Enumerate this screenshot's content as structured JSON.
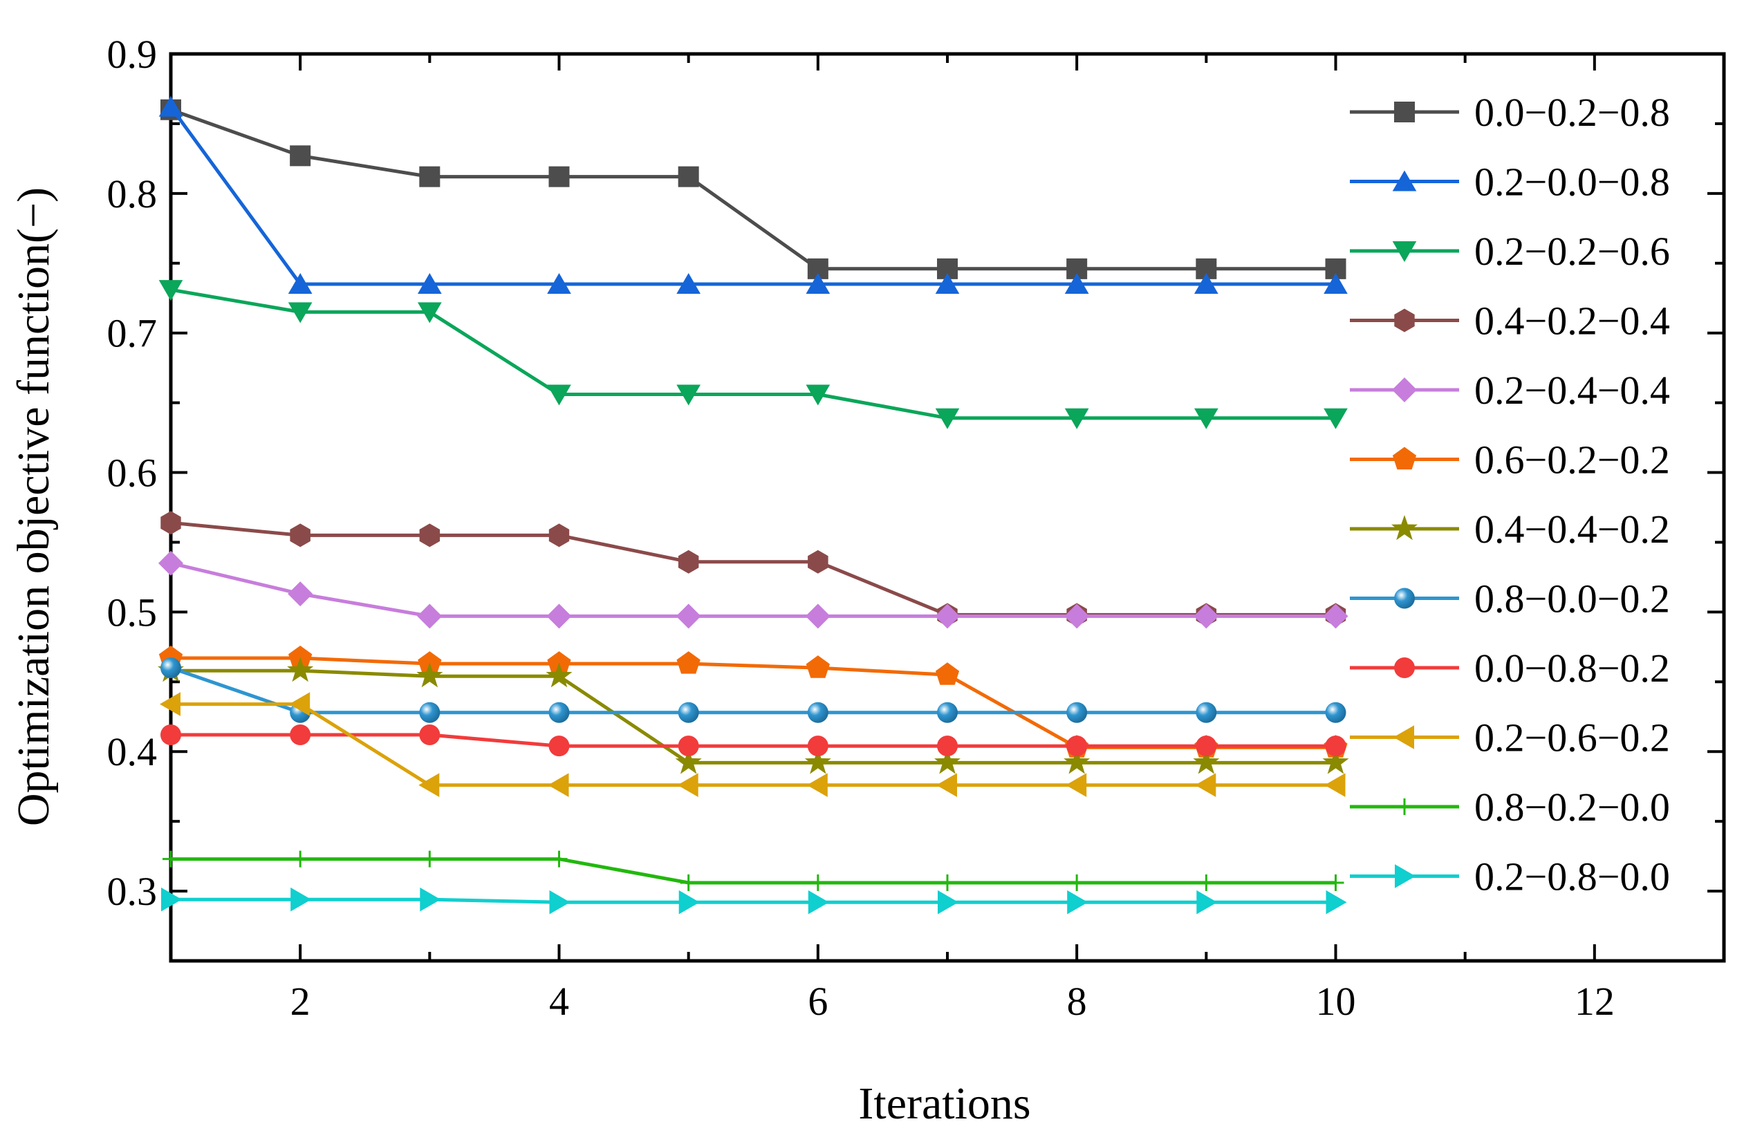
{
  "chart_data": {
    "type": "line",
    "title": "",
    "xlabel": "Iterations",
    "ylabel": "Optimization objective function(−)",
    "xlim": [
      1,
      13
    ],
    "ylim": [
      0.25,
      0.9
    ],
    "x_ticks": [
      2,
      4,
      6,
      8,
      10,
      12
    ],
    "x_tick_labels": [
      "2",
      "4",
      "6",
      "8",
      "10",
      "12"
    ],
    "y_ticks": [
      0.3,
      0.4,
      0.5,
      0.6,
      0.7,
      0.8,
      0.9
    ],
    "y_tick_labels": [
      "0.3",
      "0.4",
      "0.5",
      "0.6",
      "0.7",
      "0.8",
      "0.9"
    ],
    "grid": false,
    "legend_position": "top-right",
    "x": [
      1,
      2,
      3,
      4,
      5,
      6,
      7,
      8,
      9,
      10
    ],
    "series": [
      {
        "name": "0.0−0.2−0.8",
        "color": "#4d4d4d",
        "marker": "square",
        "values": [
          0.86,
          0.827,
          0.812,
          0.812,
          0.812,
          0.746,
          0.746,
          0.746,
          0.746,
          0.746
        ]
      },
      {
        "name": "0.2−0.0−0.8",
        "color": "#1565d8",
        "marker": "triangle-up",
        "values": [
          0.862,
          0.735,
          0.735,
          0.735,
          0.735,
          0.735,
          0.735,
          0.735,
          0.735,
          0.735
        ]
      },
      {
        "name": "0.2−0.2−0.6",
        "color": "#0aa65a",
        "marker": "triangle-down",
        "values": [
          0.731,
          0.715,
          0.715,
          0.656,
          0.656,
          0.656,
          0.639,
          0.639,
          0.639,
          0.639
        ]
      },
      {
        "name": "0.4−0.2−0.4",
        "color": "#8b4a4a",
        "marker": "hexagon",
        "values": [
          0.564,
          0.555,
          0.555,
          0.555,
          0.536,
          0.536,
          0.498,
          0.498,
          0.498,
          0.498
        ]
      },
      {
        "name": "0.2−0.4−0.4",
        "color": "#c77ddc",
        "marker": "diamond",
        "values": [
          0.535,
          0.513,
          0.497,
          0.497,
          0.497,
          0.497,
          0.497,
          0.497,
          0.497,
          0.497
        ]
      },
      {
        "name": "0.6−0.2−0.2",
        "color": "#f26a06",
        "marker": "pentagon",
        "values": [
          0.467,
          0.467,
          0.463,
          0.463,
          0.463,
          0.46,
          0.455,
          0.403,
          0.403,
          0.403
        ]
      },
      {
        "name": "0.4−0.4−0.2",
        "color": "#8a8a00",
        "marker": "star",
        "values": [
          0.458,
          0.458,
          0.454,
          0.454,
          0.392,
          0.392,
          0.392,
          0.392,
          0.392,
          0.392
        ]
      },
      {
        "name": "0.8−0.0−0.2",
        "color": "#2f95d0",
        "marker": "sphere",
        "values": [
          0.46,
          0.428,
          0.428,
          0.428,
          0.428,
          0.428,
          0.428,
          0.428,
          0.428,
          0.428
        ]
      },
      {
        "name": "0.0−0.8−0.2",
        "color": "#f23b3b",
        "marker": "circle",
        "values": [
          0.412,
          0.412,
          0.412,
          0.404,
          0.404,
          0.404,
          0.404,
          0.404,
          0.404,
          0.404
        ]
      },
      {
        "name": "0.2−0.6−0.2",
        "color": "#dba20a",
        "marker": "triangle-left",
        "values": [
          0.434,
          0.434,
          0.376,
          0.376,
          0.376,
          0.376,
          0.376,
          0.376,
          0.376,
          0.376
        ]
      },
      {
        "name": "0.8−0.2−0.0",
        "color": "#22b80e",
        "marker": "plus",
        "values": [
          0.323,
          0.323,
          0.323,
          0.323,
          0.306,
          0.306,
          0.306,
          0.306,
          0.306,
          0.306
        ]
      },
      {
        "name": "0.2−0.8−0.0",
        "color": "#10cfcf",
        "marker": "triangle-right",
        "values": [
          0.294,
          0.294,
          0.294,
          0.292,
          0.292,
          0.292,
          0.292,
          0.292,
          0.292,
          0.292
        ]
      }
    ]
  }
}
